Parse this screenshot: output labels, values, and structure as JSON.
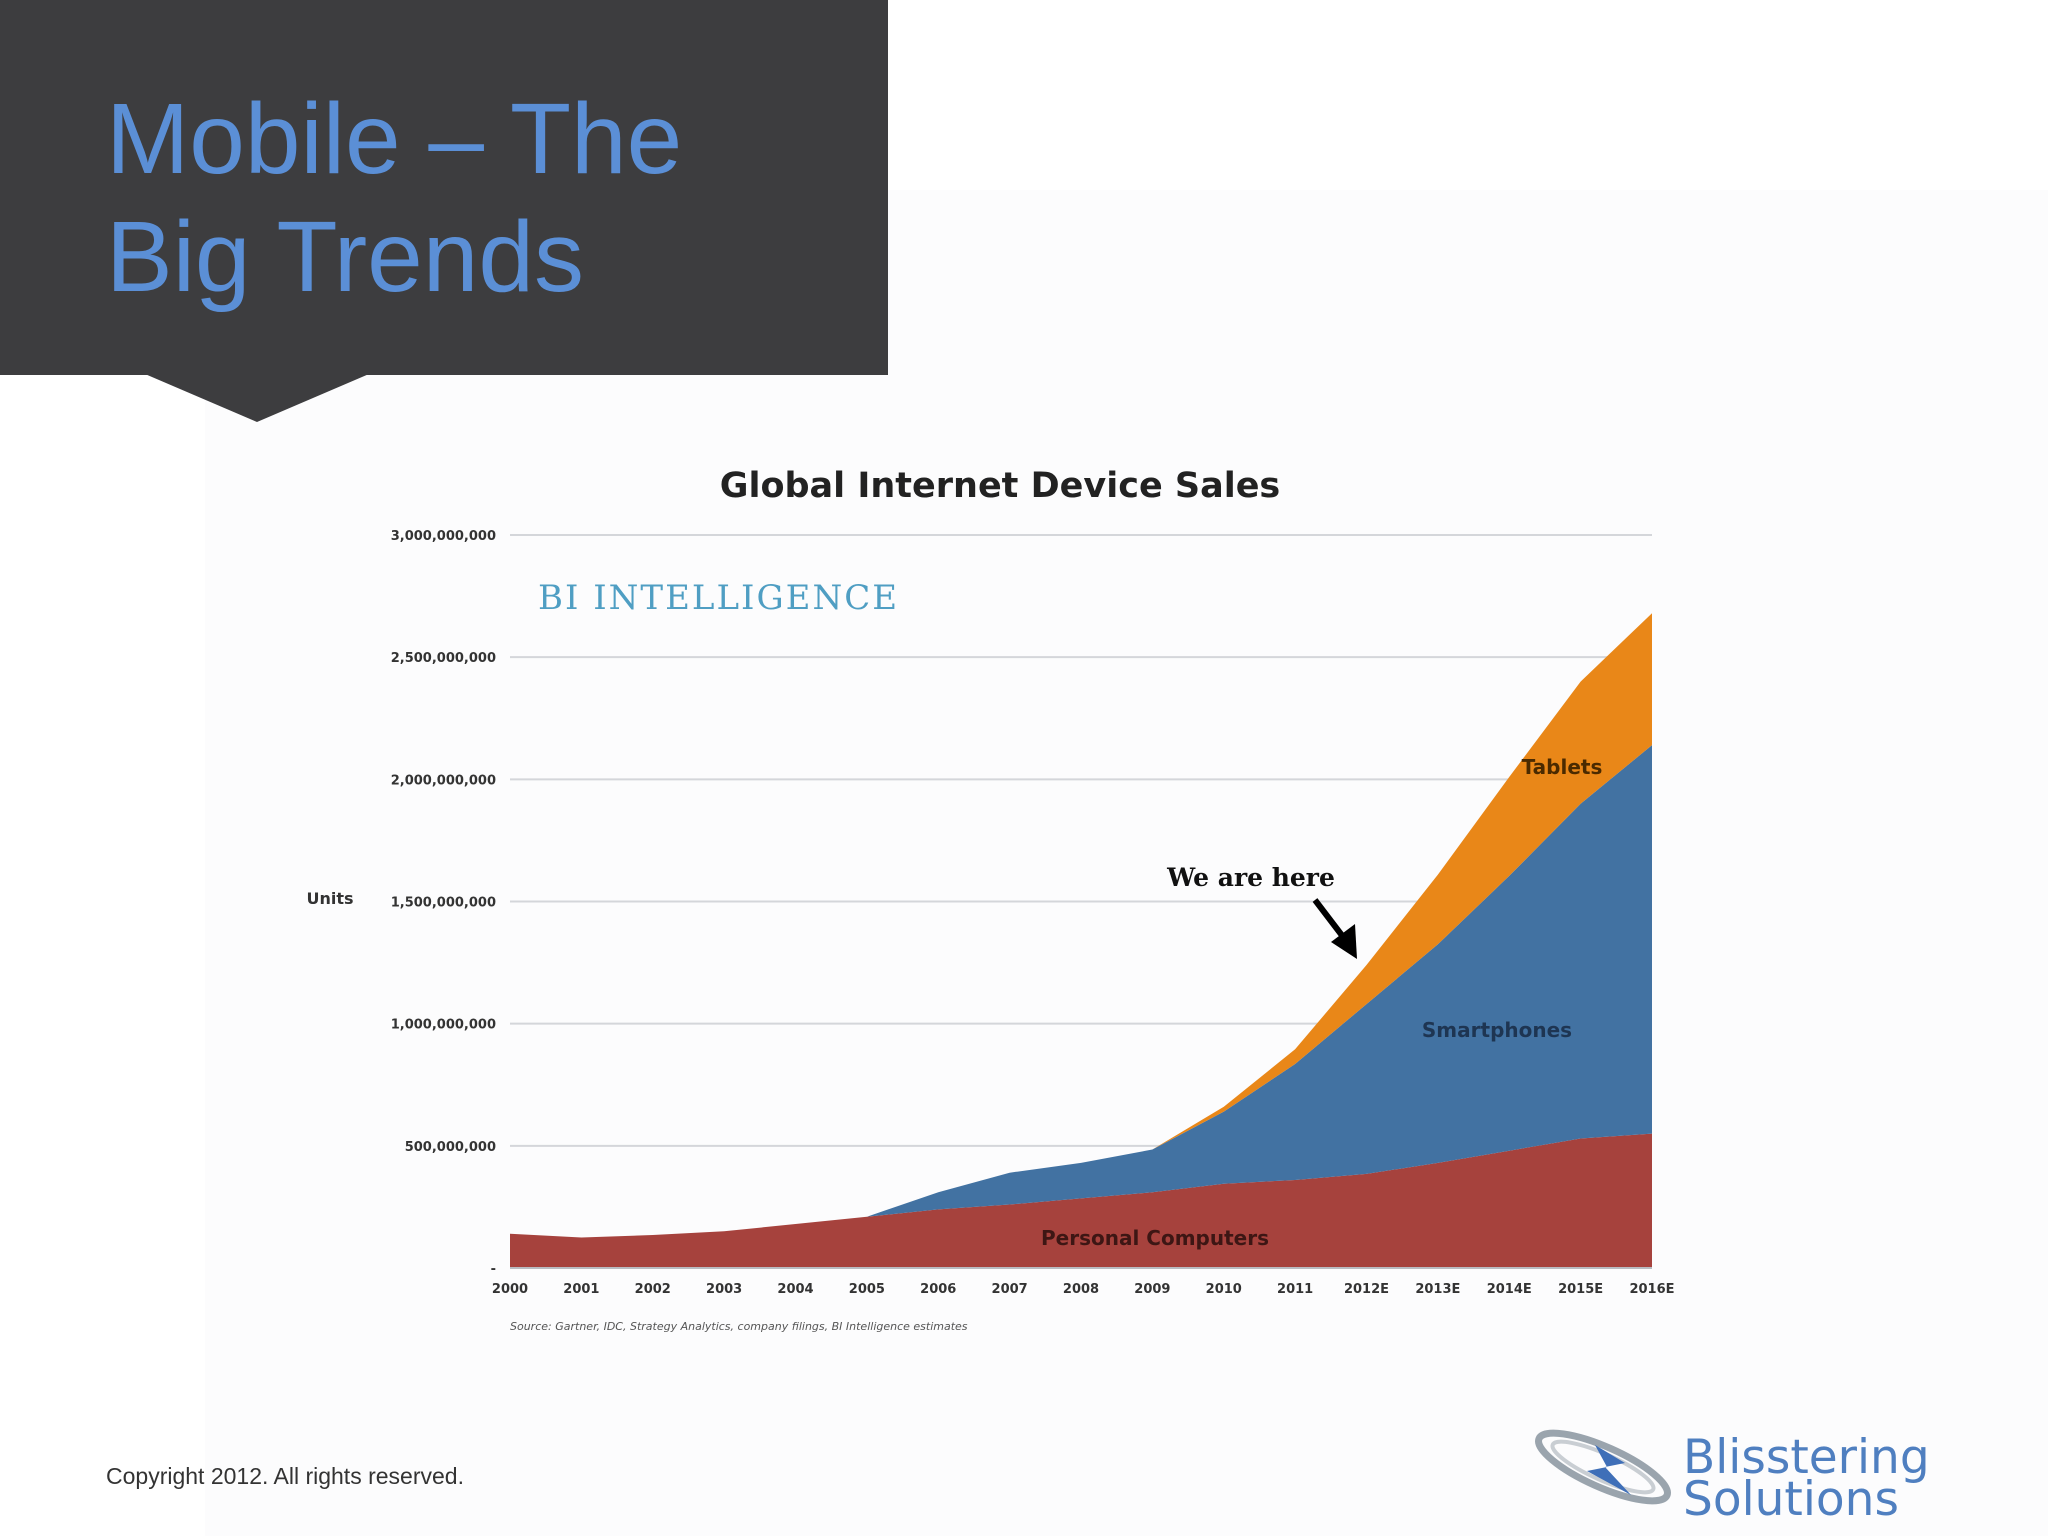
{
  "slide": {
    "title_line1": "Mobile – The",
    "title_line2": "Big Trends",
    "copyright": "Copyright 2012. All rights reserved.",
    "logo_line1": "Blisstering",
    "logo_line2": "Solutions"
  },
  "chart_data": {
    "type": "area",
    "stacked": true,
    "title": "Global Internet Device Sales",
    "ylabel": "Units",
    "xlabel": "",
    "watermark": "BI INTELLIGENCE",
    "source": "Source: Gartner, IDC, Strategy Analytics, company filings, BI Intelligence estimates",
    "annotation": "We are here",
    "grid": true,
    "ylim": [
      0,
      3000000000
    ],
    "yticks": [
      0,
      500000000,
      1000000000,
      1500000000,
      2000000000,
      2500000000,
      3000000000
    ],
    "ytick_labels": [
      "-",
      "500,000,000",
      "1,000,000,000",
      "1,500,000,000",
      "2,000,000,000",
      "2,500,000,000",
      "3,000,000,000"
    ],
    "categories": [
      "2000",
      "2001",
      "2002",
      "2003",
      "2004",
      "2005",
      "2006",
      "2007",
      "2008",
      "2009",
      "2010",
      "2011",
      "2012E",
      "2013E",
      "2014E",
      "2015E",
      "2016E"
    ],
    "series": [
      {
        "name": "Personal Computers",
        "color": "#a6423d",
        "values": [
          140000000,
          125000000,
          135000000,
          150000000,
          180000000,
          210000000,
          240000000,
          260000000,
          285000000,
          310000000,
          345000000,
          360000000,
          385000000,
          430000000,
          480000000,
          530000000,
          550000000
        ]
      },
      {
        "name": "Smartphones",
        "color": "#4272a2",
        "values": [
          0,
          0,
          0,
          0,
          0,
          0,
          70000000,
          130000000,
          145000000,
          175000000,
          295000000,
          475000000,
          695000000,
          895000000,
          1125000000,
          1370000000,
          1590000000
        ]
      },
      {
        "name": "Tablets",
        "color": "#e98718",
        "values": [
          0,
          0,
          0,
          0,
          0,
          0,
          0,
          0,
          0,
          0,
          20000000,
          60000000,
          160000000,
          285000000,
          405000000,
          500000000,
          540000000
        ]
      }
    ]
  }
}
